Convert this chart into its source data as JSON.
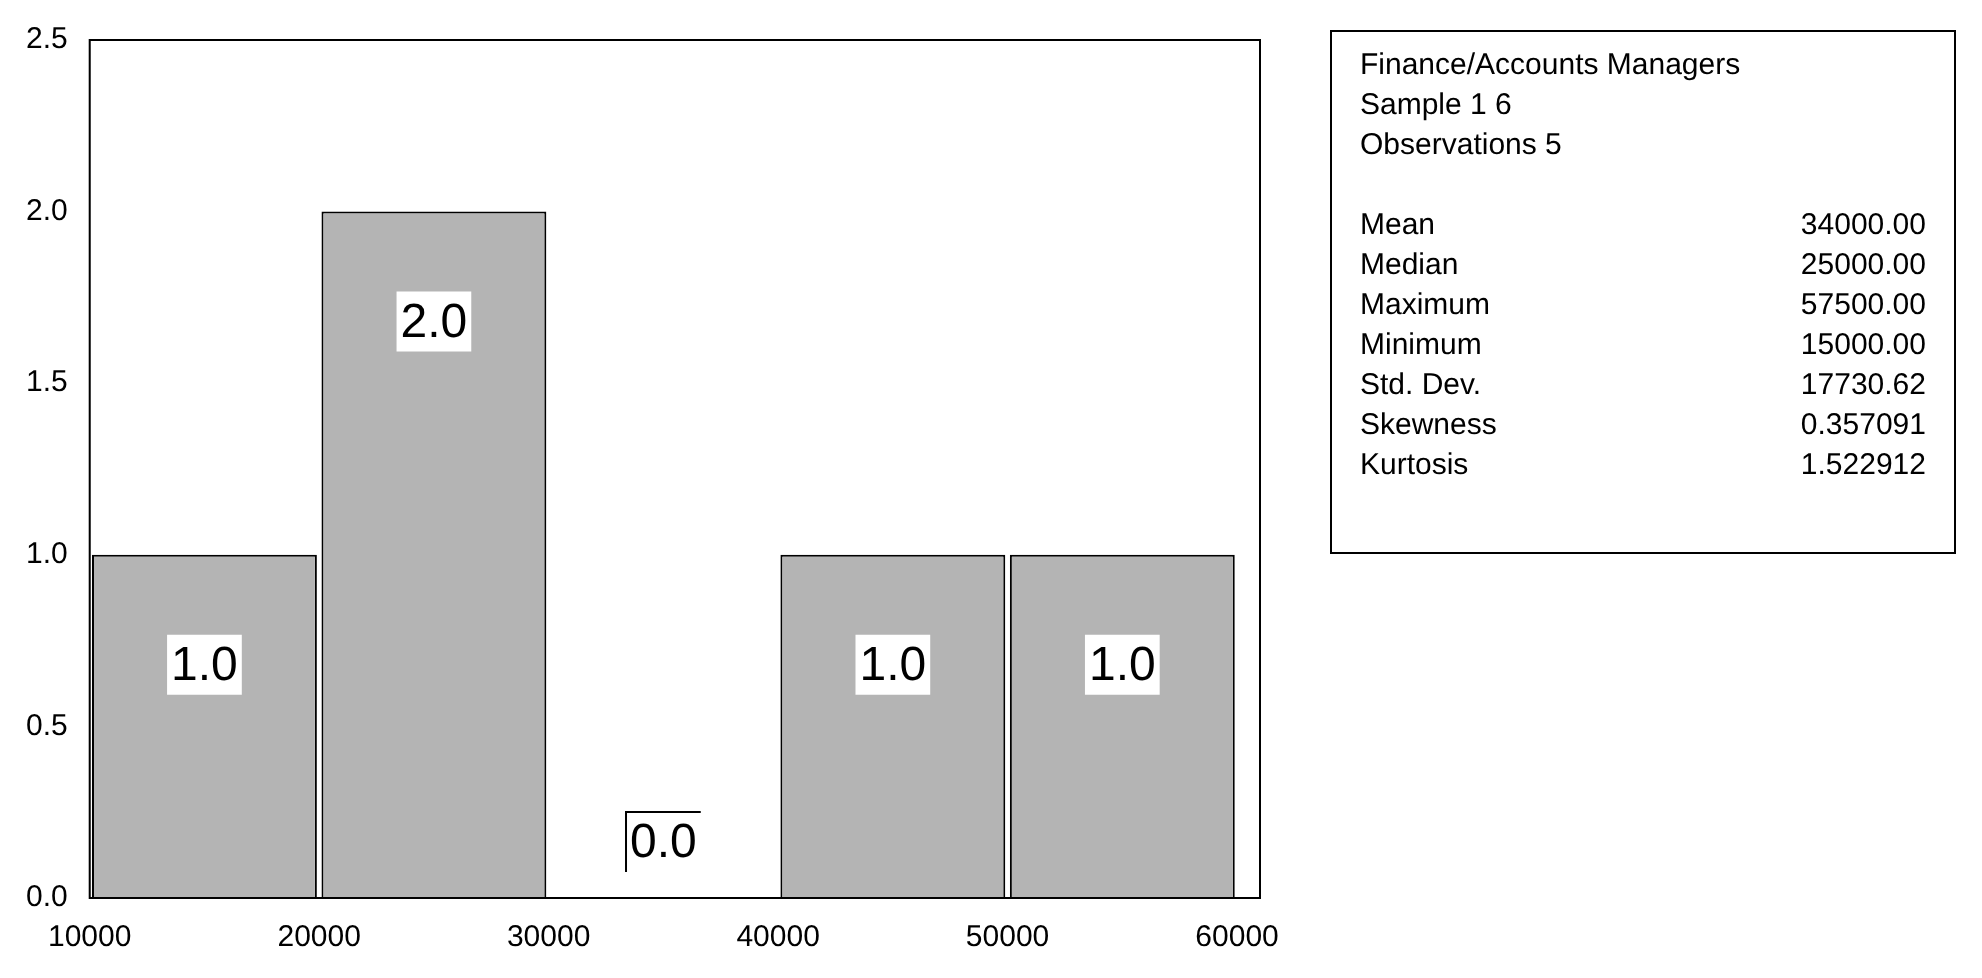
{
  "chart_data": [
    {
      "type": "histogram",
      "bins": [
        10000,
        20000,
        30000,
        40000,
        50000,
        60000
      ],
      "values": [
        1,
        2,
        0,
        1,
        1
      ],
      "value_labels": [
        "1.0",
        "2.0",
        "0.0",
        "1.0",
        "1.0"
      ],
      "color": "#b4b4b4",
      "xlim": [
        10000,
        61000
      ],
      "xticks": [
        10000,
        20000,
        30000,
        40000,
        50000,
        60000
      ],
      "ylim": [
        0,
        2.5
      ],
      "yticks": [
        {
          "value": 0,
          "label": "0.0"
        },
        {
          "value": 0.5,
          "label": "0.5"
        },
        {
          "value": 1,
          "label": "1.0"
        },
        {
          "value": 1.5,
          "label": "1.5"
        },
        {
          "value": 2,
          "label": "2.0"
        },
        {
          "value": 2.5,
          "label": "2.5"
        }
      ],
      "grid": false,
      "legend": false
    },
    {
      "type": "other",
      "title": "Finance/Accounts Managers",
      "annotations": [
        "Sample 1 6",
        "Observations 5"
      ],
      "categories": [
        "Mean",
        "Median",
        "Maximum",
        "Minimum",
        "Std. Dev.",
        "Skewness",
        "Kurtosis"
      ],
      "value_labels": [
        "34000.00",
        "25000.00",
        "57500.00",
        "15000.00",
        "17730.62",
        "0.357091",
        "1.522912"
      ]
    }
  ]
}
